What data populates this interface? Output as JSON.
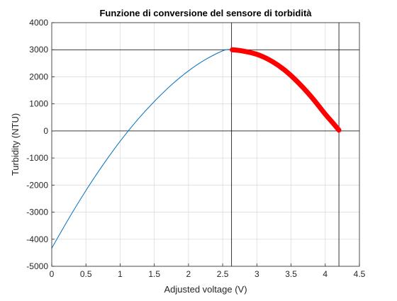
{
  "chart_data": {
    "type": "line",
    "title": "Funzione di conversione del sensore di torbidità",
    "xlabel": "Adjusted voltage (V)",
    "ylabel": "Turbidity (NTU)",
    "xlim": [
      0,
      4.5
    ],
    "ylim": [
      -5000,
      4000
    ],
    "xticks": [
      0,
      0.5,
      1,
      1.5,
      2,
      2.5,
      3,
      3.5,
      4,
      4.5
    ],
    "xtick_labels": [
      "0",
      "0.5",
      "1",
      "1.5",
      "2",
      "2.5",
      "3",
      "3.5",
      "4",
      "4.5"
    ],
    "yticks": [
      -5000,
      -4000,
      -3000,
      -2000,
      -1000,
      0,
      1000,
      2000,
      3000,
      4000
    ],
    "ytick_labels": [
      "-5000",
      "-4000",
      "-3000",
      "-2000",
      "-1000",
      "0",
      "1000",
      "2000",
      "3000",
      "4000"
    ],
    "grid": true,
    "series": [
      {
        "color": "#0072bd",
        "x": [
          0.0,
          0.25,
          0.5,
          0.75,
          1.0,
          1.25,
          1.5,
          1.75,
          2.0,
          2.25,
          2.5,
          2.6,
          2.64
        ],
        "y": [
          -4330,
          -3230,
          -2200,
          -1250,
          -380,
          400,
          1090,
          1700,
          2220,
          2640,
          2960,
          3010,
          3000
        ]
      },
      {
        "color": "#ff0000",
        "x": [
          2.64,
          2.8,
          3.0,
          3.2,
          3.4,
          3.6,
          3.8,
          4.0,
          4.1,
          4.2
        ],
        "y": [
          3000,
          2950,
          2830,
          2600,
          2260,
          1800,
          1250,
          620,
          330,
          30
        ]
      }
    ],
    "reference_lines": {
      "vertical": [
        2.63,
        4.2
      ],
      "horizontal": [
        3000,
        0
      ],
      "color": "#000000"
    }
  }
}
